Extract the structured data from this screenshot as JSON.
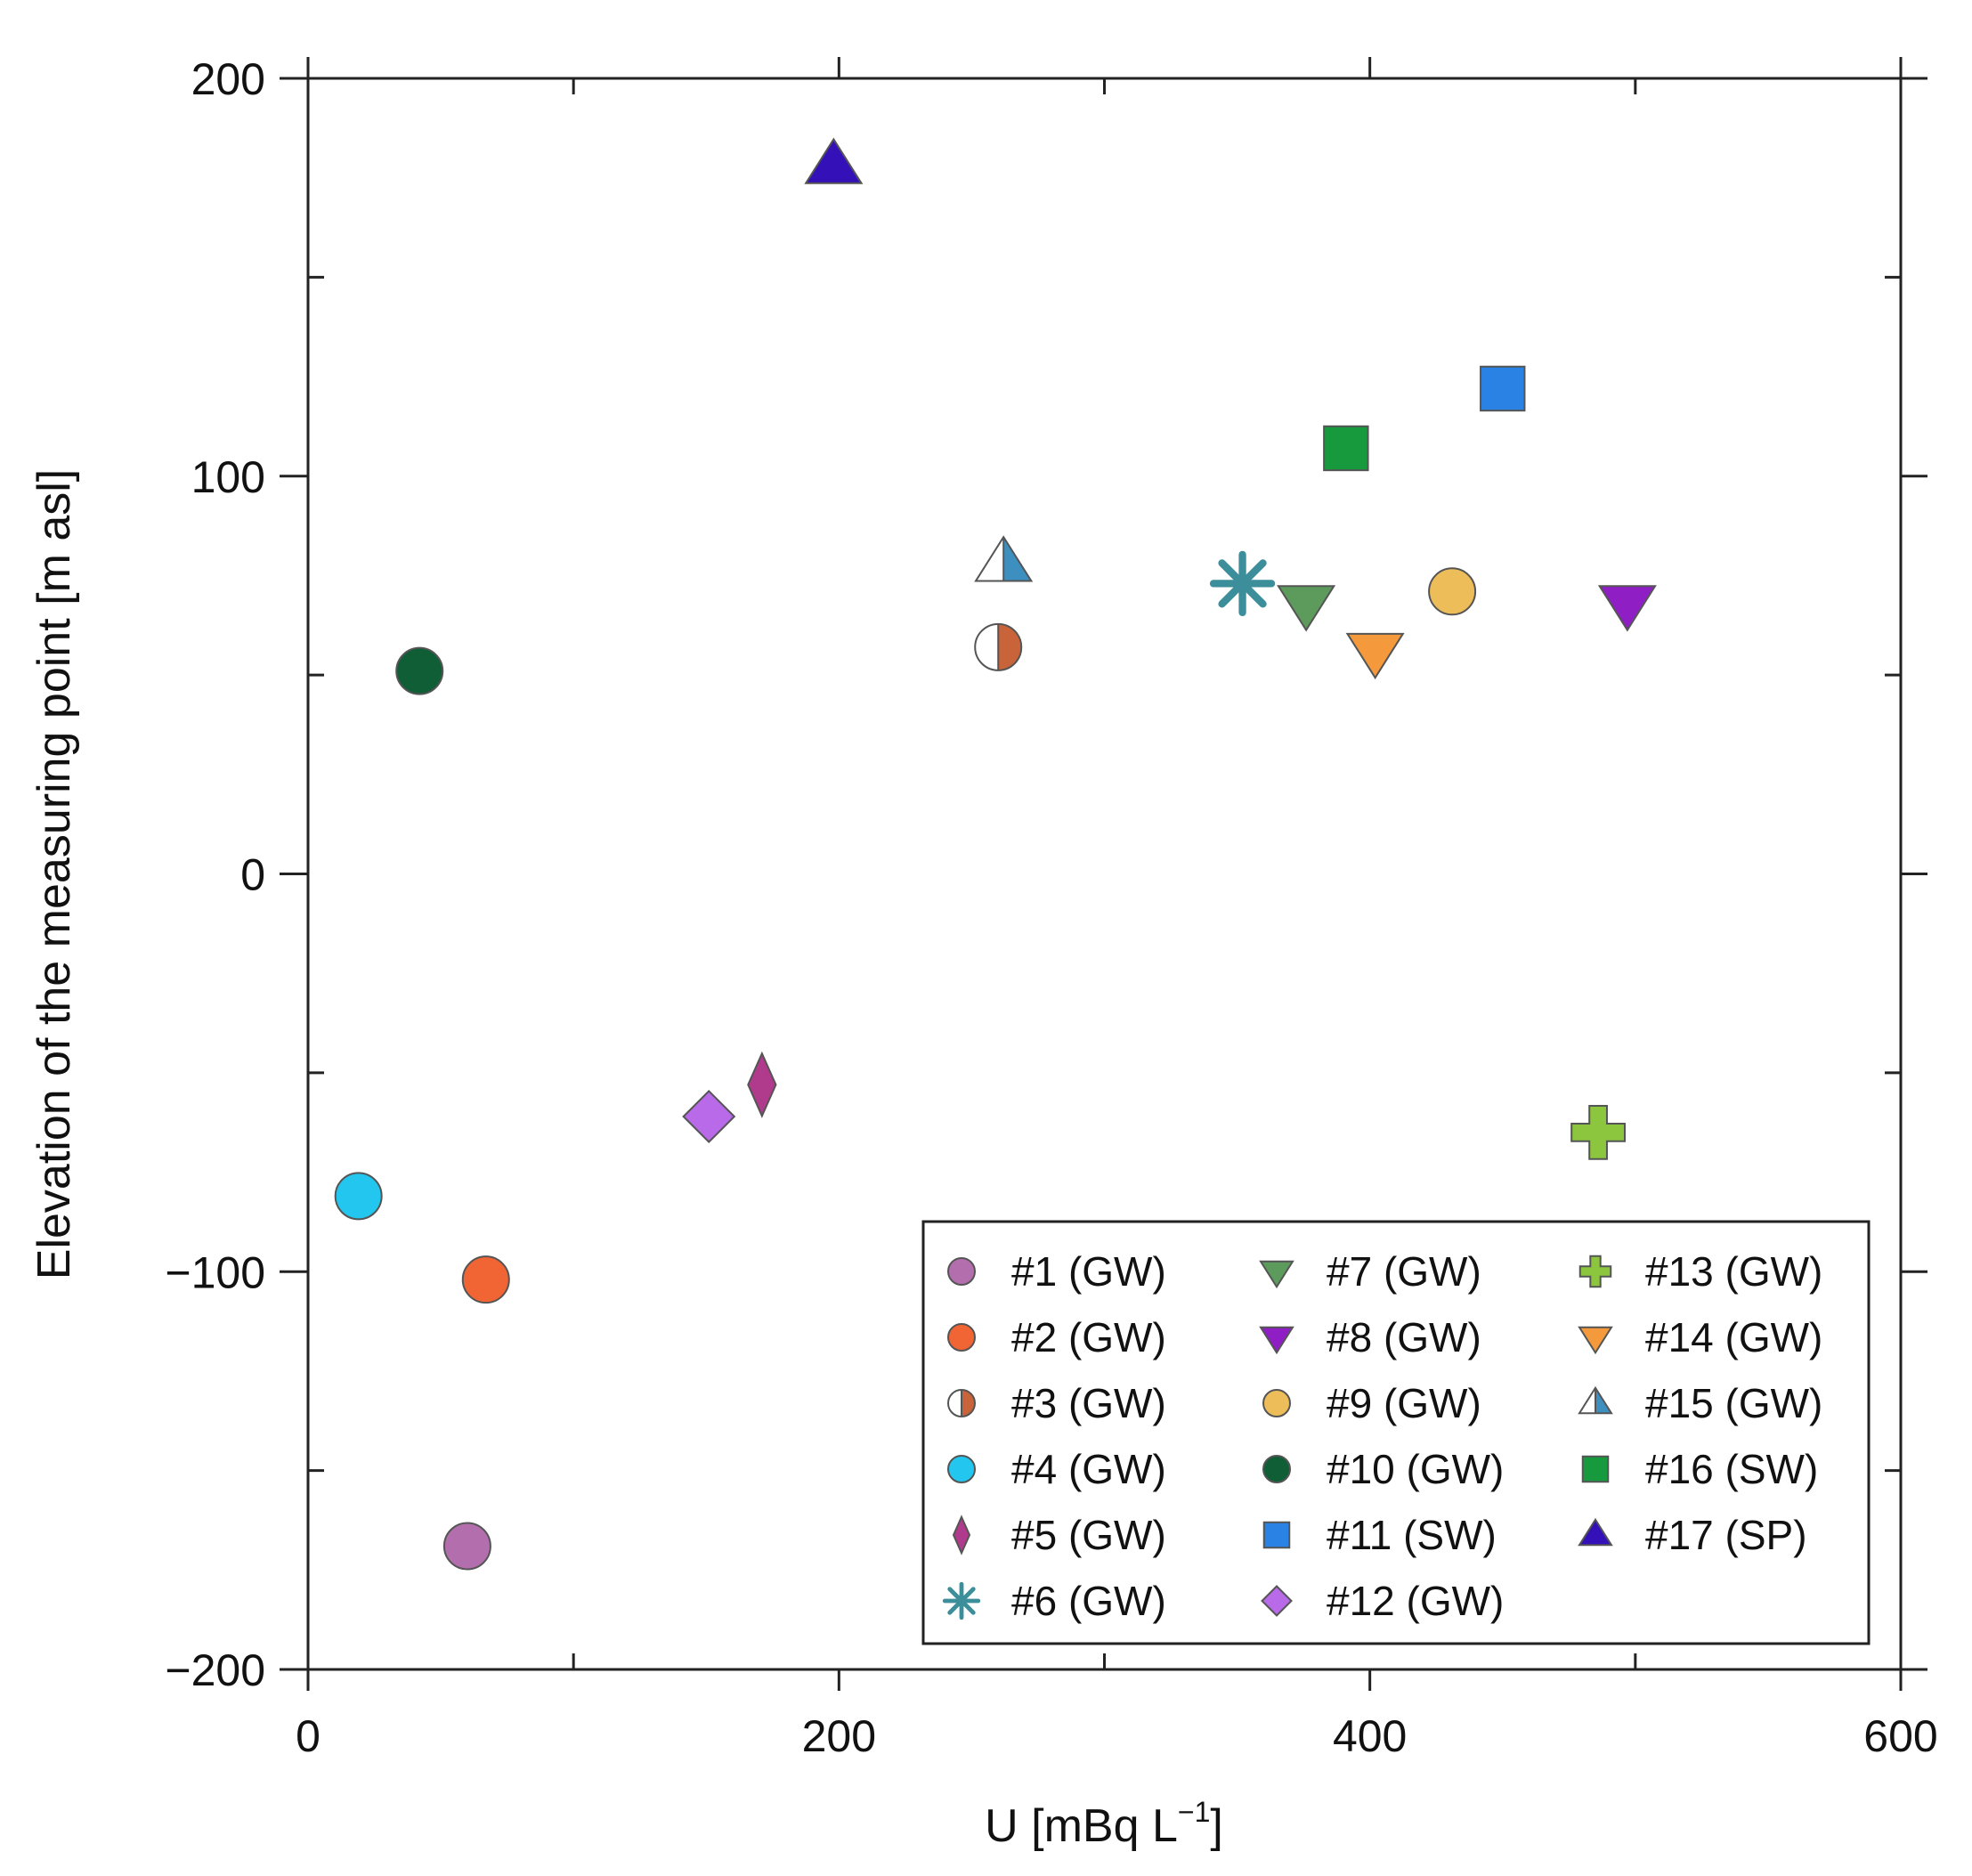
{
  "chart_data": {
    "type": "scatter",
    "title": "",
    "xlabel": "U [mBq L",
    "xlabel_superscript": "−1",
    "xlabel_suffix": "]",
    "ylabel": "Elevation of the measuring point [m asl]",
    "xlim": [
      0,
      600
    ],
    "ylim": [
      -200,
      200
    ],
    "x_ticks": [
      0,
      200,
      400,
      600
    ],
    "x_tick_labels": [
      "0",
      "200",
      "400",
      "600"
    ],
    "y_ticks": [
      200,
      100,
      0,
      -100,
      -200
    ],
    "y_tick_labels": [
      "200",
      "100",
      "0",
      "−100",
      "−200"
    ],
    "x_minor_ticks": [
      100,
      300,
      500
    ],
    "y_minor_ticks": [
      150,
      50,
      -50,
      -150
    ],
    "grid": false,
    "legend_position": "bottom-right",
    "series": [
      {
        "name": "#1 (GW)",
        "marker": "circle",
        "color": "#b36fad",
        "x": 60,
        "y": -169
      },
      {
        "name": "#2 (GW)",
        "marker": "circle",
        "color": "#f16433",
        "x": 67,
        "y": -102
      },
      {
        "name": "#3 (GW)",
        "marker": "half-circle",
        "color": "#c9643a",
        "x": 260,
        "y": 57
      },
      {
        "name": "#4 (GW)",
        "marker": "circle",
        "color": "#22c6ef",
        "x": 19,
        "y": -81
      },
      {
        "name": "#5 (GW)",
        "marker": "thin-diamond",
        "color": "#b03a8c",
        "x": 171,
        "y": -53
      },
      {
        "name": "#6 (GW)",
        "marker": "asterisk",
        "color": "#3c8e9a",
        "x": 352,
        "y": 73
      },
      {
        "name": "#7 (GW)",
        "marker": "triangle-down",
        "color": "#5c9b5c",
        "x": 376,
        "y": 68
      },
      {
        "name": "#8 (GW)",
        "marker": "triangle-down",
        "color": "#8f1fc4",
        "x": 497,
        "y": 68
      },
      {
        "name": "#9 (GW)",
        "marker": "circle",
        "color": "#edbd5a",
        "x": 431,
        "y": 71
      },
      {
        "name": "#10 (GW)",
        "marker": "circle",
        "color": "#0f5e36",
        "x": 42,
        "y": 51
      },
      {
        "name": "#11 (SW)",
        "marker": "square",
        "color": "#2a82e4",
        "x": 450,
        "y": 122
      },
      {
        "name": "#12 (GW)",
        "marker": "diamond",
        "color": "#b86ae8",
        "x": 151,
        "y": -61
      },
      {
        "name": "#13 (GW)",
        "marker": "plus",
        "color": "#8cc63e",
        "x": 486,
        "y": -65
      },
      {
        "name": "#14 (GW)",
        "marker": "triangle-down",
        "color": "#f59a3c",
        "x": 402,
        "y": 56
      },
      {
        "name": "#15 (GW)",
        "marker": "half-triangle",
        "color": "#3d8fc0",
        "x": 262,
        "y": 78
      },
      {
        "name": "#16 (SW)",
        "marker": "square",
        "color": "#179a3e",
        "x": 391,
        "y": 107
      },
      {
        "name": "#17 (SP)",
        "marker": "triangle-up",
        "color": "#3310b8",
        "x": 198,
        "y": 178
      }
    ]
  }
}
